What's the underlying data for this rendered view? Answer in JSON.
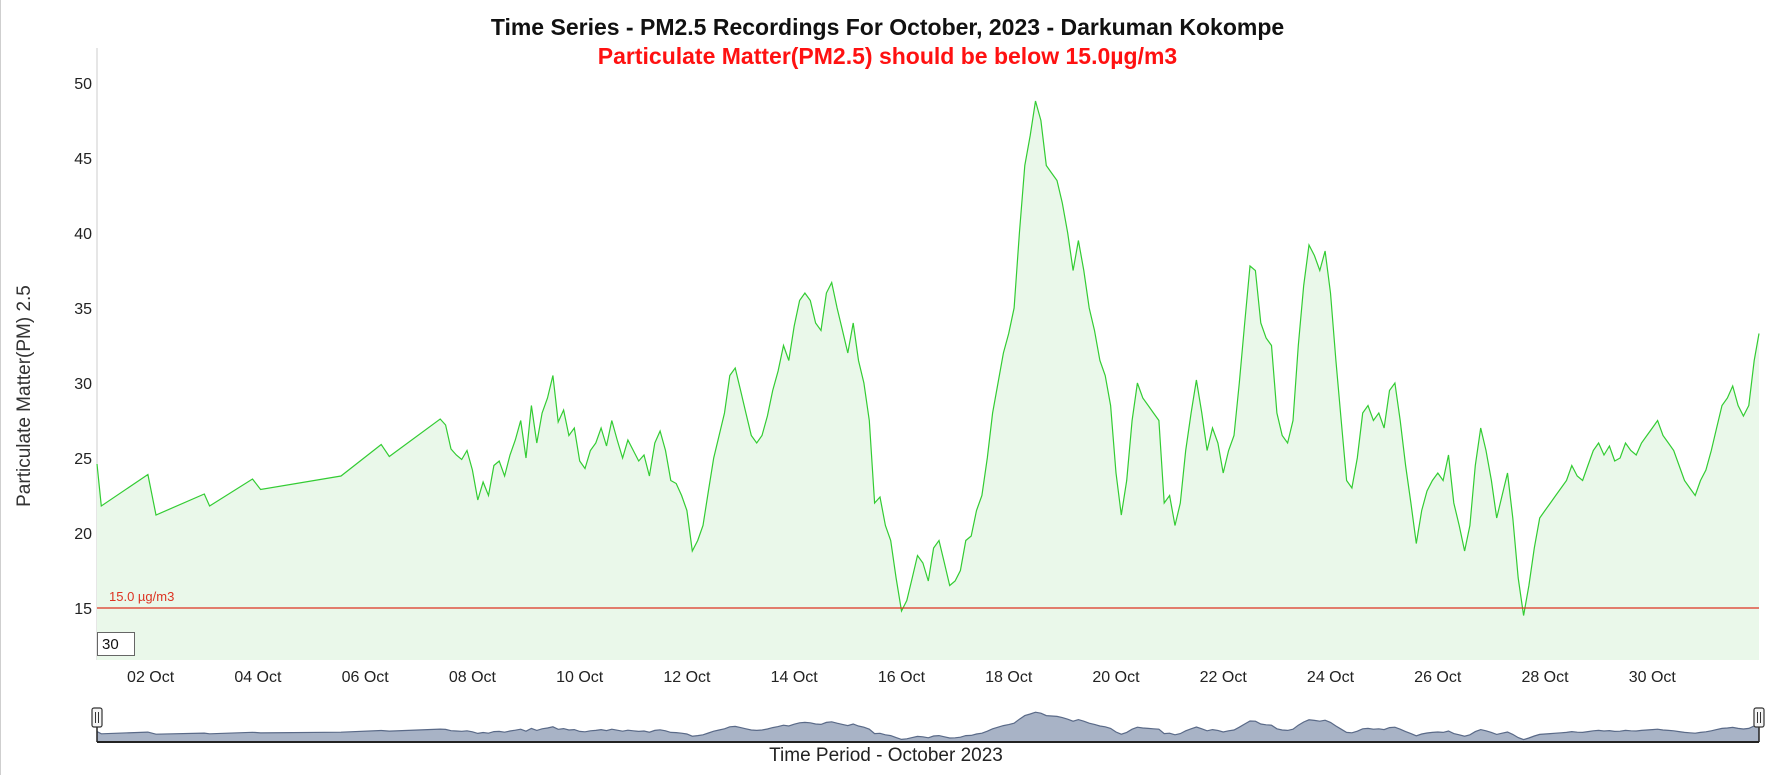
{
  "chart_data": {
    "type": "area",
    "title": "Time Series - PM2.5 Recordings For October, 2023 - Darkuman Kokompe",
    "subtitle": "Particulate Matter(PM2.5) should be below 15.0µg/m3",
    "ylabel": "Particulate Matter(PM) 2.5",
    "xlabel": "Time Period - October 2023",
    "ylim": [
      11.5,
      52
    ],
    "yticks": [
      "15",
      "20",
      "25",
      "30",
      "35",
      "40",
      "45",
      "50"
    ],
    "xticks": [
      "02 Oct",
      "04 Oct",
      "06 Oct",
      "08 Oct",
      "10 Oct",
      "12 Oct",
      "14 Oct",
      "16 Oct",
      "18 Oct",
      "20 Oct",
      "22 Oct",
      "24 Oct",
      "26 Oct",
      "28 Oct",
      "30 Oct"
    ],
    "xrange_days": [
      1.0,
      31.99
    ],
    "threshold": {
      "value": 15,
      "label": "15.0 µg/m3"
    },
    "rolling_window": "30",
    "navigator": true,
    "series": [
      {
        "values": [
          [
            1.0,
            24.6
          ],
          [
            1.08,
            21.8
          ],
          [
            1.95,
            23.9
          ],
          [
            2.1,
            21.2
          ],
          [
            3.0,
            22.6
          ],
          [
            3.1,
            21.8
          ],
          [
            3.9,
            23.6
          ],
          [
            4.05,
            22.9
          ],
          [
            5.55,
            23.8
          ],
          [
            6.3,
            25.9
          ],
          [
            6.45,
            25.1
          ],
          [
            7.4,
            27.6
          ],
          [
            7.5,
            27.2
          ],
          [
            7.6,
            25.6
          ],
          [
            7.7,
            25.2
          ],
          [
            7.8,
            24.9
          ],
          [
            7.9,
            25.5
          ],
          [
            8.0,
            24.2
          ],
          [
            8.1,
            22.2
          ],
          [
            8.2,
            23.4
          ],
          [
            8.3,
            22.5
          ],
          [
            8.4,
            24.5
          ],
          [
            8.5,
            24.8
          ],
          [
            8.6,
            23.8
          ],
          [
            8.7,
            25.2
          ],
          [
            8.8,
            26.2
          ],
          [
            8.9,
            27.5
          ],
          [
            9.0,
            25.0
          ],
          [
            9.1,
            28.5
          ],
          [
            9.2,
            26.0
          ],
          [
            9.3,
            28.0
          ],
          [
            9.4,
            29.0
          ],
          [
            9.5,
            30.5
          ],
          [
            9.6,
            27.4
          ],
          [
            9.7,
            28.2
          ],
          [
            9.8,
            26.5
          ],
          [
            9.9,
            27.0
          ],
          [
            10.0,
            24.8
          ],
          [
            10.1,
            24.3
          ],
          [
            10.2,
            25.5
          ],
          [
            10.3,
            26.0
          ],
          [
            10.4,
            27.0
          ],
          [
            10.5,
            25.8
          ],
          [
            10.6,
            27.5
          ],
          [
            10.7,
            26.2
          ],
          [
            10.8,
            25.0
          ],
          [
            10.9,
            26.2
          ],
          [
            11.0,
            25.5
          ],
          [
            11.1,
            24.8
          ],
          [
            11.2,
            25.2
          ],
          [
            11.3,
            23.8
          ],
          [
            11.4,
            26.0
          ],
          [
            11.5,
            26.8
          ],
          [
            11.6,
            25.5
          ],
          [
            11.7,
            23.5
          ],
          [
            11.8,
            23.3
          ],
          [
            11.9,
            22.5
          ],
          [
            12.0,
            21.5
          ],
          [
            12.1,
            18.8
          ],
          [
            12.2,
            19.5
          ],
          [
            12.3,
            20.5
          ],
          [
            12.4,
            22.8
          ],
          [
            12.5,
            25.0
          ],
          [
            12.6,
            26.5
          ],
          [
            12.7,
            28.0
          ],
          [
            12.8,
            30.5
          ],
          [
            12.9,
            31.0
          ],
          [
            13.0,
            29.5
          ],
          [
            13.1,
            28.0
          ],
          [
            13.2,
            26.5
          ],
          [
            13.3,
            26.0
          ],
          [
            13.4,
            26.5
          ],
          [
            13.5,
            27.8
          ],
          [
            13.6,
            29.5
          ],
          [
            13.7,
            30.8
          ],
          [
            13.8,
            32.5
          ],
          [
            13.9,
            31.5
          ],
          [
            14.0,
            33.8
          ],
          [
            14.1,
            35.5
          ],
          [
            14.2,
            36.0
          ],
          [
            14.3,
            35.5
          ],
          [
            14.4,
            34.0
          ],
          [
            14.5,
            33.5
          ],
          [
            14.6,
            36.0
          ],
          [
            14.7,
            36.7
          ],
          [
            14.8,
            35.0
          ],
          [
            14.9,
            33.5
          ],
          [
            15.0,
            32.0
          ],
          [
            15.1,
            34.0
          ],
          [
            15.2,
            31.5
          ],
          [
            15.3,
            30.0
          ],
          [
            15.4,
            27.5
          ],
          [
            15.5,
            22.0
          ],
          [
            15.6,
            22.4
          ],
          [
            15.7,
            20.5
          ],
          [
            15.8,
            19.5
          ],
          [
            15.9,
            17.0
          ],
          [
            16.0,
            14.8
          ],
          [
            16.1,
            15.5
          ],
          [
            16.2,
            17.0
          ],
          [
            16.3,
            18.5
          ],
          [
            16.4,
            18.0
          ],
          [
            16.5,
            16.8
          ],
          [
            16.6,
            19.0
          ],
          [
            16.7,
            19.5
          ],
          [
            16.8,
            18.0
          ],
          [
            16.9,
            16.5
          ],
          [
            17.0,
            16.8
          ],
          [
            17.1,
            17.5
          ],
          [
            17.2,
            19.5
          ],
          [
            17.3,
            19.8
          ],
          [
            17.4,
            21.5
          ],
          [
            17.5,
            22.5
          ],
          [
            17.6,
            25.0
          ],
          [
            17.7,
            28.0
          ],
          [
            17.8,
            30.0
          ],
          [
            17.9,
            32.0
          ],
          [
            18.0,
            33.3
          ],
          [
            18.1,
            35.0
          ],
          [
            18.2,
            40.0
          ],
          [
            18.3,
            44.5
          ],
          [
            18.4,
            46.5
          ],
          [
            18.5,
            48.8
          ],
          [
            18.6,
            47.5
          ],
          [
            18.7,
            44.5
          ],
          [
            18.8,
            44.0
          ],
          [
            18.9,
            43.5
          ],
          [
            19.0,
            42.0
          ],
          [
            19.1,
            40.0
          ],
          [
            19.2,
            37.5
          ],
          [
            19.3,
            39.5
          ],
          [
            19.4,
            37.5
          ],
          [
            19.5,
            35.0
          ],
          [
            19.6,
            33.5
          ],
          [
            19.7,
            31.5
          ],
          [
            19.8,
            30.5
          ],
          [
            19.9,
            28.5
          ],
          [
            20.0,
            24.0
          ],
          [
            20.1,
            21.2
          ],
          [
            20.2,
            23.5
          ],
          [
            20.3,
            27.5
          ],
          [
            20.4,
            30.0
          ],
          [
            20.5,
            29.0
          ],
          [
            20.6,
            28.5
          ],
          [
            20.7,
            28.0
          ],
          [
            20.8,
            27.5
          ],
          [
            20.9,
            22.0
          ],
          [
            21.0,
            22.5
          ],
          [
            21.1,
            20.5
          ],
          [
            21.2,
            22.0
          ],
          [
            21.3,
            25.5
          ],
          [
            21.4,
            28.0
          ],
          [
            21.5,
            30.2
          ],
          [
            21.6,
            28.0
          ],
          [
            21.7,
            25.5
          ],
          [
            21.8,
            27.0
          ],
          [
            21.9,
            26.0
          ],
          [
            22.0,
            24.0
          ],
          [
            22.1,
            25.5
          ],
          [
            22.2,
            26.5
          ],
          [
            22.3,
            30.0
          ],
          [
            22.4,
            34.0
          ],
          [
            22.5,
            37.8
          ],
          [
            22.6,
            37.5
          ],
          [
            22.7,
            34.0
          ],
          [
            22.8,
            33.0
          ],
          [
            22.9,
            32.5
          ],
          [
            23.0,
            28.0
          ],
          [
            23.1,
            26.5
          ],
          [
            23.2,
            26.0
          ],
          [
            23.3,
            27.5
          ],
          [
            23.4,
            32.5
          ],
          [
            23.5,
            36.5
          ],
          [
            23.6,
            39.2
          ],
          [
            23.7,
            38.5
          ],
          [
            23.8,
            37.5
          ],
          [
            23.9,
            38.8
          ],
          [
            24.0,
            36.0
          ],
          [
            24.1,
            31.5
          ],
          [
            24.2,
            27.5
          ],
          [
            24.3,
            23.5
          ],
          [
            24.4,
            23.0
          ],
          [
            24.5,
            25.0
          ],
          [
            24.6,
            28.0
          ],
          [
            24.7,
            28.5
          ],
          [
            24.8,
            27.5
          ],
          [
            24.9,
            28.0
          ],
          [
            25.0,
            27.0
          ],
          [
            25.1,
            29.5
          ],
          [
            25.2,
            30.0
          ],
          [
            25.3,
            27.5
          ],
          [
            25.4,
            24.5
          ],
          [
            25.5,
            22.0
          ],
          [
            25.6,
            19.3
          ],
          [
            25.7,
            21.5
          ],
          [
            25.8,
            22.8
          ],
          [
            25.9,
            23.5
          ],
          [
            26.0,
            24.0
          ],
          [
            26.1,
            23.5
          ],
          [
            26.2,
            25.2
          ],
          [
            26.3,
            22.0
          ],
          [
            26.4,
            20.5
          ],
          [
            26.5,
            18.8
          ],
          [
            26.6,
            20.5
          ],
          [
            26.7,
            24.5
          ],
          [
            26.8,
            27.0
          ],
          [
            26.9,
            25.5
          ],
          [
            27.0,
            23.5
          ],
          [
            27.1,
            21.0
          ],
          [
            27.2,
            22.5
          ],
          [
            27.3,
            24.0
          ],
          [
            27.4,
            21.0
          ],
          [
            27.5,
            17.0
          ],
          [
            27.6,
            14.5
          ],
          [
            27.7,
            16.5
          ],
          [
            27.8,
            19.0
          ],
          [
            27.9,
            21.0
          ],
          [
            28.0,
            21.5
          ],
          [
            28.1,
            22.0
          ],
          [
            28.2,
            22.5
          ],
          [
            28.3,
            23.0
          ],
          [
            28.4,
            23.5
          ],
          [
            28.5,
            24.5
          ],
          [
            28.6,
            23.8
          ],
          [
            28.7,
            23.5
          ],
          [
            28.8,
            24.5
          ],
          [
            28.9,
            25.5
          ],
          [
            29.0,
            26.0
          ],
          [
            29.1,
            25.2
          ],
          [
            29.2,
            25.8
          ],
          [
            29.3,
            24.8
          ],
          [
            29.4,
            25.0
          ],
          [
            29.5,
            26.0
          ],
          [
            29.6,
            25.5
          ],
          [
            29.7,
            25.2
          ],
          [
            29.8,
            26.0
          ],
          [
            29.9,
            26.5
          ],
          [
            30.0,
            27.0
          ],
          [
            30.1,
            27.5
          ],
          [
            30.2,
            26.5
          ],
          [
            30.3,
            26.0
          ],
          [
            30.4,
            25.5
          ],
          [
            30.5,
            24.5
          ],
          [
            30.6,
            23.5
          ],
          [
            30.7,
            23.0
          ],
          [
            30.8,
            22.5
          ],
          [
            30.9,
            23.5
          ],
          [
            31.0,
            24.2
          ],
          [
            31.1,
            25.5
          ],
          [
            31.2,
            27.0
          ],
          [
            31.3,
            28.5
          ],
          [
            31.4,
            29.0
          ],
          [
            31.5,
            29.8
          ],
          [
            31.6,
            28.5
          ],
          [
            31.7,
            27.8
          ],
          [
            31.8,
            28.5
          ],
          [
            31.85,
            30.0
          ],
          [
            31.9,
            31.5
          ],
          [
            31.99,
            33.3
          ]
        ],
        "color": "#33cc33",
        "fill": "#eaf8ea"
      }
    ],
    "colors": {
      "threshold": "#dd3322",
      "subtitle": "#ff1111",
      "navigator_fill": "#a8b3c6",
      "navigator_line": "#5a6a88"
    }
  }
}
